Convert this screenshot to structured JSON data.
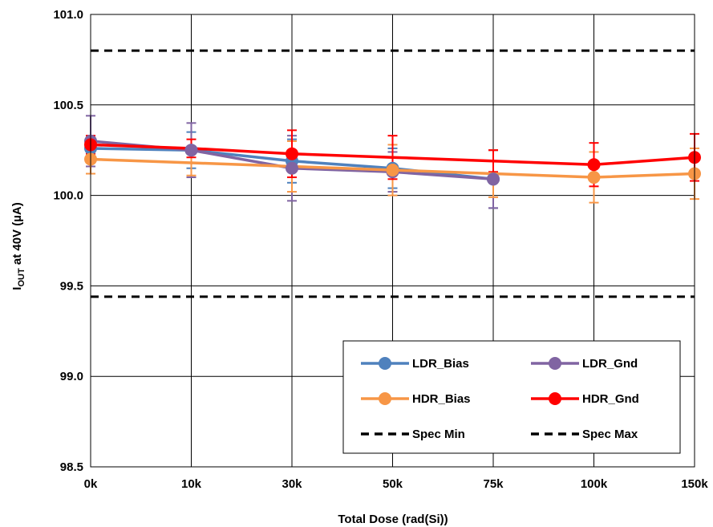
{
  "chart_data": {
    "type": "line",
    "categories": [
      "0k",
      "10k",
      "30k",
      "50k",
      "75k",
      "100k",
      "150k"
    ],
    "xlabel": "Total Dose (rad(Si))",
    "ylabel": {
      "prefix": "I",
      "sub": "OUT",
      "suffix": " at 40V (µA)"
    },
    "ylim": [
      98.5,
      101.0
    ],
    "yticks": [
      98.5,
      99.0,
      99.5,
      100.0,
      100.5,
      101.0
    ],
    "ytick_labels": [
      "98.5",
      "99.0",
      "99.5",
      "100.0",
      "100.5",
      "101.0"
    ],
    "grid": true,
    "legend": "bottom-right",
    "series": [
      {
        "name": "LDR_Bias",
        "color": "#4f81bd",
        "values": [
          100.26,
          100.25,
          100.19,
          100.15,
          100.09,
          null,
          null
        ],
        "err": [
          0.07,
          0.1,
          0.12,
          0.11,
          0.16,
          null,
          null
        ]
      },
      {
        "name": "LDR_Gnd",
        "color": "#8064a2",
        "values": [
          100.3,
          100.25,
          100.15,
          100.13,
          100.09,
          null,
          null
        ],
        "err": [
          0.14,
          0.15,
          0.18,
          0.11,
          0.16,
          null,
          null
        ]
      },
      {
        "name": "HDR_Bias",
        "color": "#f79646",
        "values": [
          100.2,
          100.18,
          100.16,
          100.14,
          100.12,
          100.1,
          100.12
        ],
        "err": [
          0.08,
          0.07,
          0.14,
          0.14,
          0.13,
          0.14,
          0.14
        ]
      },
      {
        "name": "HDR_Gnd",
        "color": "#ff0000",
        "values": [
          100.28,
          100.26,
          100.23,
          100.21,
          100.19,
          100.17,
          100.21
        ],
        "err": [
          0.05,
          0.05,
          0.13,
          0.12,
          0.06,
          0.12,
          0.13
        ]
      }
    ],
    "markers": [
      {
        "series": "LDR_Bias",
        "indices": [
          0,
          1,
          2,
          3,
          4
        ]
      },
      {
        "series": "LDR_Gnd",
        "indices": [
          0,
          1,
          2,
          3,
          4
        ]
      },
      {
        "series": "HDR_Bias",
        "indices": [
          0,
          3,
          5,
          6
        ]
      },
      {
        "series": "HDR_Gnd",
        "indices": [
          0,
          2,
          5,
          6
        ]
      }
    ],
    "spec_lines": [
      {
        "name": "Spec Min",
        "value": 99.44,
        "color": "#000000"
      },
      {
        "name": "Spec Max",
        "value": 100.8,
        "color": "#000000"
      }
    ]
  }
}
